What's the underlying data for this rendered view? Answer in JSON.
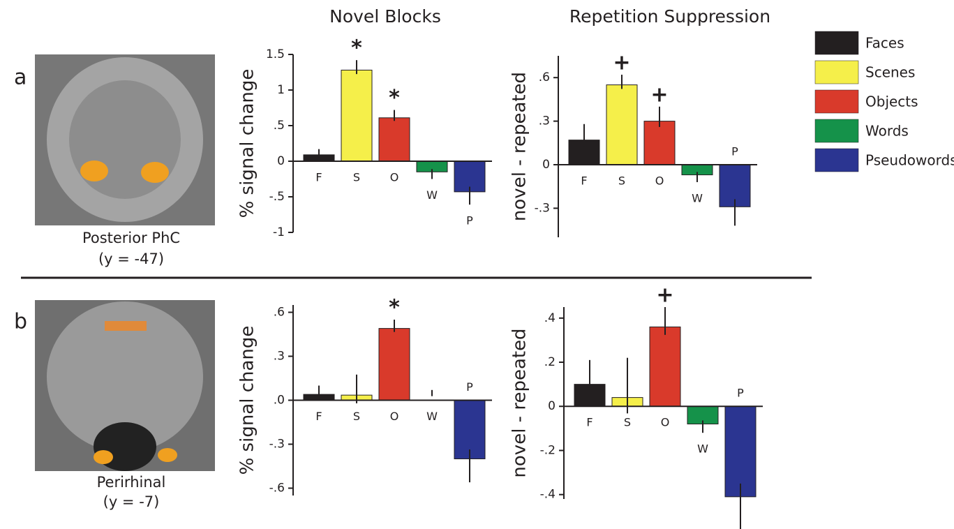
{
  "panel_labels": [
    "a",
    "b"
  ],
  "column_titles": [
    "Novel Blocks",
    "Repetition Suppression"
  ],
  "images": [
    {
      "caption": [
        "Posterior PhC",
        "(y = -47)"
      ]
    },
    {
      "caption": [
        "Perirhinal",
        "(y = -7)"
      ]
    }
  ],
  "legend": [
    {
      "name": "Faces",
      "color": "#231f20"
    },
    {
      "name": "Scenes",
      "color": "#f5ef4a"
    },
    {
      "name": "Objects",
      "color": "#d93a2b"
    },
    {
      "name": "Words",
      "color": "#15924a"
    },
    {
      "name": "Pseudowords",
      "color": "#2b3591"
    }
  ],
  "chart_data": [
    {
      "type": "bar",
      "y_label": "% signal change",
      "categories": [
        "F",
        "S",
        "O",
        "W",
        "P"
      ],
      "values": [
        0.09,
        1.28,
        0.61,
        -0.15,
        -0.43
      ],
      "errors": [
        0.08,
        0.14,
        0.11,
        0.1,
        0.18
      ],
      "markers": [
        null,
        "*",
        "*",
        null,
        null
      ],
      "ylim": [
        -1,
        1.5
      ],
      "yticks": [
        -1,
        {
          "value": -0.5,
          "label": "-.5"
        },
        0,
        {
          "value": 0.5,
          "label": ".5"
        },
        1,
        1.5
      ]
    },
    {
      "type": "bar",
      "y_label": "novel - repeated",
      "categories": [
        "F",
        "S",
        "O",
        "W",
        "P"
      ],
      "values": [
        0.17,
        0.55,
        0.3,
        -0.07,
        -0.29
      ],
      "errors": [
        0.11,
        0.07,
        0.1,
        0.05,
        0.13
      ],
      "markers": [
        null,
        "+",
        "+",
        null,
        null
      ],
      "ylim": [
        -0.5,
        0.75
      ],
      "yticks": [
        {
          "value": -0.3,
          "label": "-.3"
        },
        0,
        {
          "value": 0.3,
          "label": ".3"
        },
        {
          "value": 0.6,
          "label": ".6"
        }
      ]
    },
    {
      "type": "bar",
      "y_label": "% signal change",
      "categories": [
        "F",
        "S",
        "O",
        "W",
        "P"
      ],
      "values": [
        0.04,
        0.035,
        0.49,
        0,
        -0.4
      ],
      "errors": [
        0.06,
        0.14,
        0.06,
        0.07,
        0.16
      ],
      "markers": [
        null,
        null,
        "*",
        null,
        null
      ],
      "ylim": [
        -0.65,
        0.65
      ],
      "yticks": [
        {
          "value": -0.6,
          "label": "-.6"
        },
        {
          "value": -0.3,
          "label": "-.3"
        },
        {
          "value": 0,
          "label": ".0"
        },
        {
          "value": 0.3,
          "label": ".3"
        },
        {
          "value": 0.6,
          "label": ".6"
        }
      ]
    },
    {
      "type": "bar",
      "y_label": "novel - repeated",
      "categories": [
        "F",
        "S",
        "O",
        "W",
        "P"
      ],
      "values": [
        0.1,
        0.04,
        0.36,
        -0.08,
        -0.41
      ],
      "errors": [
        0.11,
        0.18,
        0.09,
        0.04,
        0.15
      ],
      "markers": [
        null,
        null,
        "+",
        null,
        null
      ],
      "ylim": [
        -0.42,
        0.45
      ],
      "yticks": [
        {
          "value": -0.4,
          "label": "-.4"
        },
        {
          "value": -0.2,
          "label": "-.2"
        },
        0,
        {
          "value": 0.2,
          "label": ".2"
        },
        {
          "value": 0.4,
          "label": ".4"
        }
      ]
    }
  ]
}
